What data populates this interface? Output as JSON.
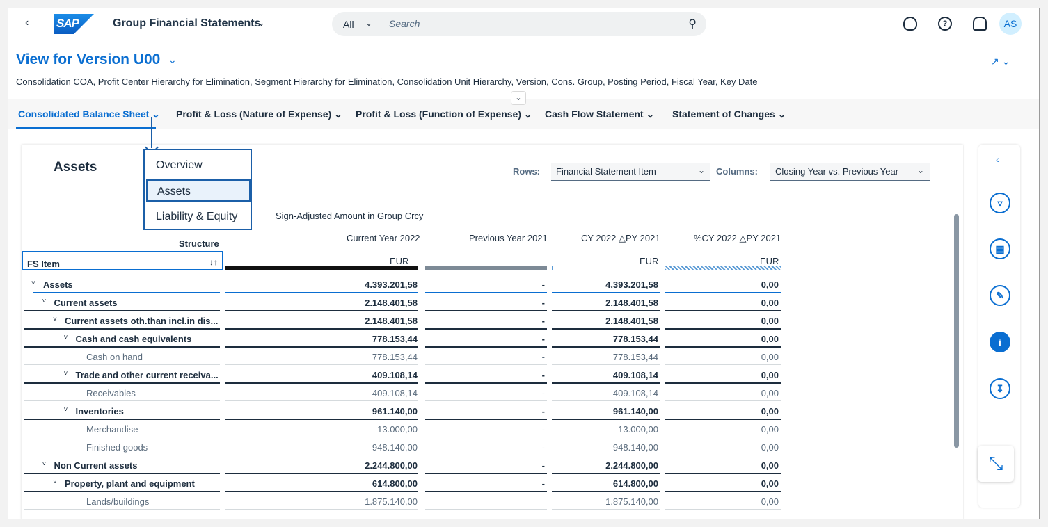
{
  "shell": {
    "back_icon": "chevron-left-icon",
    "logo_text": "SAP",
    "app_title": "Group Financial Statements",
    "search_scope": "All",
    "search_placeholder": "Search",
    "avatar": "AS"
  },
  "header": {
    "title": "View for Version U00",
    "dirty_mark": "*",
    "filters": "Consolidation COA, Profit Center Hierarchy for Elimination, Segment Hierarchy for Elimination, Consolidation Unit Hierarchy, Version, Cons. Group, Posting Period, Fiscal Year, Key Date"
  },
  "tabs": [
    {
      "label": "Consolidated Balance Sheet",
      "selected": true
    },
    {
      "label": "Profit & Loss (Nature of Expense)"
    },
    {
      "label": "Profit & Loss (Function of Expense)"
    },
    {
      "label": "Cash Flow Statement"
    },
    {
      "label": "Statement of Changes"
    }
  ],
  "dropdown": {
    "items": [
      "Overview",
      "Assets",
      "Liability & Equity"
    ],
    "active": "Assets"
  },
  "card": {
    "title": "Assets",
    "rows_label": "Rows:",
    "rows_value": "Financial Statement Item",
    "columns_label": "Columns:",
    "columns_value": "Closing Year vs. Previous Year"
  },
  "table": {
    "measure_label": "Sign-Adjusted Amount in Group Crcy",
    "structure_label": "Structure",
    "fs_item_label": "FS Item",
    "columns": [
      "Current Year 2022",
      "Previous Year 2021",
      "CY 2022 △PY 2021",
      "%CY 2022 △PY 2021"
    ],
    "units": [
      "EUR",
      "",
      "EUR",
      "EUR"
    ],
    "rows": [
      {
        "name": "Assets",
        "values": [
          "4.393.201,58",
          "-",
          "4.393.201,58",
          "0,00"
        ]
      },
      {
        "name": "Current assets",
        "values": [
          "2.148.401,58",
          "-",
          "2.148.401,58",
          "0,00"
        ]
      },
      {
        "name": "Current assets oth.than incl.in dis...",
        "values": [
          "2.148.401,58",
          "-",
          "2.148.401,58",
          "0,00"
        ]
      },
      {
        "name": "Cash and cash equivalents",
        "values": [
          "778.153,44",
          "-",
          "778.153,44",
          "0,00"
        ]
      },
      {
        "name": "Cash on hand",
        "values": [
          "778.153,44",
          "-",
          "778.153,44",
          "0,00"
        ]
      },
      {
        "name": "Trade and other current receiva...",
        "values": [
          "409.108,14",
          "-",
          "409.108,14",
          "0,00"
        ]
      },
      {
        "name": "Receivables",
        "values": [
          "409.108,14",
          "-",
          "409.108,14",
          "0,00"
        ]
      },
      {
        "name": "Inventories",
        "values": [
          "961.140,00",
          "-",
          "961.140,00",
          "0,00"
        ]
      },
      {
        "name": "Merchandise",
        "values": [
          "13.000,00",
          "-",
          "13.000,00",
          "0,00"
        ]
      },
      {
        "name": "Finished goods",
        "values": [
          "948.140,00",
          "-",
          "948.140,00",
          "0,00"
        ]
      },
      {
        "name": "Non Current assets",
        "values": [
          "2.244.800,00",
          "-",
          "2.244.800,00",
          "0,00"
        ]
      },
      {
        "name": "Property, plant and equipment",
        "values": [
          "614.800,00",
          "-",
          "614.800,00",
          "0,00"
        ]
      },
      {
        "name": "Lands/buildings",
        "values": [
          "1.875.140,00",
          "",
          "1.875.140,00",
          "0,00"
        ]
      }
    ]
  },
  "colors": {
    "accent": "#0a6ed1",
    "callout": "#1b5fa8",
    "text": "#1d2d3e"
  }
}
